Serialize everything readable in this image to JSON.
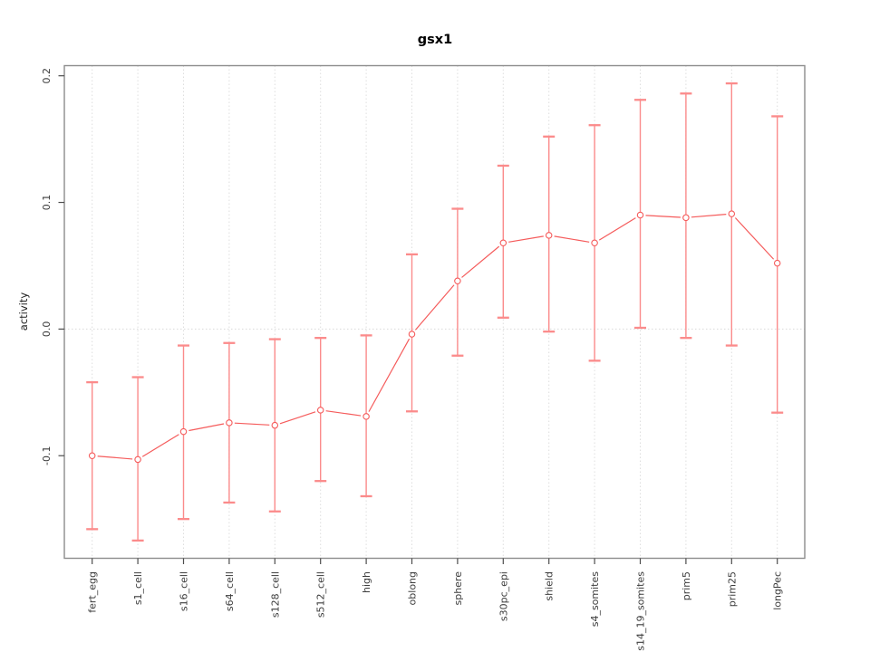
{
  "chart_data": {
    "type": "line",
    "title": "gsx1",
    "xlabel": "",
    "ylabel": "activity",
    "legend_position": "none",
    "marker": "open-circle",
    "grid": "dotted vertical line at each category; dotted horizontal line at y=0",
    "categories": [
      "fert_egg",
      "s1_cell",
      "s16_cell",
      "s64_cell",
      "s128_cell",
      "s512_cell",
      "high",
      "oblong",
      "sphere",
      "s30pc_epi",
      "shield",
      "s4_somites",
      "s14_19_somites",
      "prim5",
      "prim25",
      "longPec"
    ],
    "series": [
      {
        "name": "gsx1 activity",
        "values": [
          -0.1,
          -0.103,
          -0.081,
          -0.074,
          -0.076,
          -0.064,
          -0.069,
          -0.004,
          0.038,
          0.068,
          0.074,
          0.068,
          0.09,
          0.088,
          0.091,
          0.052
        ],
        "error_low": [
          -0.158,
          -0.167,
          -0.15,
          -0.137,
          -0.144,
          -0.12,
          -0.132,
          -0.065,
          -0.021,
          0.009,
          -0.002,
          -0.025,
          0.001,
          -0.007,
          -0.013,
          -0.066
        ],
        "error_high": [
          -0.042,
          -0.038,
          -0.013,
          -0.011,
          -0.008,
          -0.007,
          -0.005,
          0.059,
          0.095,
          0.129,
          0.152,
          0.161,
          0.181,
          0.186,
          0.194,
          0.168
        ]
      }
    ],
    "ytick_labels": [
      "-0.1",
      "0.0",
      "0.1",
      "0.2"
    ],
    "ytick_values": [
      -0.1,
      0.0,
      0.1,
      0.2
    ],
    "ylim": [
      -0.181,
      0.208
    ],
    "colors": {
      "series_line": "#f55b5b",
      "error_bar": "#fb8b8b",
      "grid_line": "#dedede",
      "zero_line": "#d9d9d9",
      "frame": "#8c8c8c",
      "tick": "#4d4d4d",
      "label_text": "#3c3c3c",
      "title_text": "#000000",
      "background": "#ffffff"
    }
  }
}
